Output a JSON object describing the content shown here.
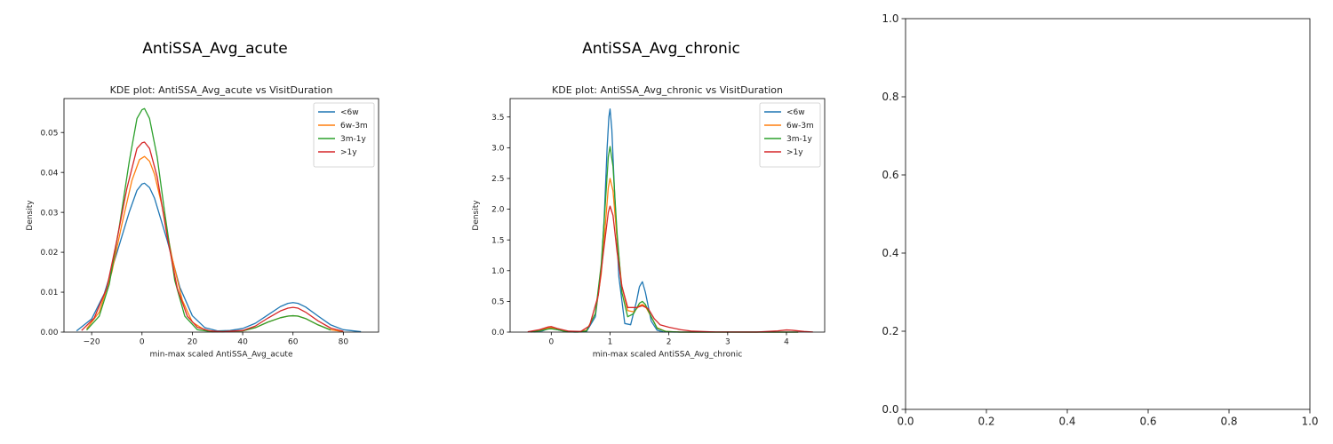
{
  "figure": {
    "subplot_titles": [
      "AntiSSA_Avg_acute",
      "AntiSSA_Avg_chronic"
    ]
  },
  "chart_data": [
    {
      "type": "line",
      "title": "KDE plot:  AntiSSA_Avg_acute vs VisitDuration",
      "xlabel": "min-max scaled AntiSSA_Avg_acute",
      "ylabel": "Density",
      "xlim": [
        -31,
        94
      ],
      "ylim": [
        0,
        0.0585
      ],
      "xticks": [
        -20,
        0,
        20,
        40,
        60,
        80
      ],
      "xtick_labels": [
        "−20",
        "0",
        "20",
        "40",
        "60",
        "80"
      ],
      "yticks": [
        0.0,
        0.01,
        0.02,
        0.03,
        0.04,
        0.05
      ],
      "ytick_labels": [
        "0.00",
        "0.01",
        "0.02",
        "0.03",
        "0.04",
        "0.05"
      ],
      "legend_position": "upper right",
      "series": [
        {
          "name": "<6w",
          "color": "#1f77b4",
          "x": [
            -26,
            -20,
            -15,
            -10,
            -5,
            -2,
            0,
            1,
            3,
            5,
            10,
            15,
            20,
            25,
            30,
            35,
            40,
            45,
            50,
            55,
            58,
            60,
            62,
            65,
            70,
            75,
            80,
            87
          ],
          "y": [
            0.0003,
            0.0033,
            0.0096,
            0.0198,
            0.0302,
            0.0355,
            0.0371,
            0.0373,
            0.0362,
            0.0335,
            0.023,
            0.0113,
            0.0041,
            0.0011,
            0.0003,
            0.0004,
            0.0009,
            0.0022,
            0.0043,
            0.0064,
            0.0072,
            0.0074,
            0.0072,
            0.0063,
            0.004,
            0.0018,
            0.0006,
            0.0001
          ]
        },
        {
          "name": "6w-3m",
          "color": "#ff7f0e",
          "x": [
            -22,
            -17,
            -12,
            -8,
            -4,
            -1,
            1,
            3,
            5,
            8,
            12,
            16,
            20,
            25,
            30,
            40,
            45,
            50,
            55,
            58,
            60,
            62,
            65,
            70,
            75,
            80
          ],
          "y": [
            0.0008,
            0.005,
            0.015,
            0.027,
            0.038,
            0.0432,
            0.044,
            0.0428,
            0.0395,
            0.0315,
            0.0185,
            0.008,
            0.0025,
            0.0005,
            0.0001,
            0.0003,
            0.0011,
            0.0025,
            0.0036,
            0.004,
            0.0041,
            0.004,
            0.0034,
            0.0018,
            0.0006,
            0.0001
          ]
        },
        {
          "name": "3m-1y",
          "color": "#2ca02c",
          "x": [
            -22,
            -17,
            -13,
            -9,
            -5,
            -2,
            0,
            1,
            3,
            6,
            9,
            13,
            17,
            22,
            28,
            40,
            45,
            50,
            55,
            58,
            60,
            62,
            65,
            70,
            75
          ],
          "y": [
            0.0005,
            0.004,
            0.012,
            0.0265,
            0.043,
            0.0535,
            0.0557,
            0.056,
            0.0535,
            0.044,
            0.03,
            0.013,
            0.004,
            0.0006,
            0.0001,
            0.0003,
            0.0011,
            0.0025,
            0.0036,
            0.004,
            0.0041,
            0.004,
            0.0034,
            0.0018,
            0.0005
          ]
        },
        {
          "name": ">1y",
          "color": "#d62728",
          "x": [
            -24,
            -19,
            -14,
            -10,
            -6,
            -2,
            0,
            1,
            3,
            6,
            10,
            14,
            18,
            22,
            27,
            32,
            40,
            45,
            50,
            55,
            58,
            60,
            62,
            65,
            70,
            75,
            80
          ],
          "y": [
            0.0004,
            0.0035,
            0.011,
            0.023,
            0.036,
            0.046,
            0.0474,
            0.0476,
            0.046,
            0.039,
            0.024,
            0.011,
            0.004,
            0.0012,
            0.0003,
            0.0001,
            0.0004,
            0.0015,
            0.0035,
            0.0053,
            0.006,
            0.0062,
            0.006,
            0.005,
            0.0028,
            0.001,
            0.0002
          ]
        }
      ]
    },
    {
      "type": "line",
      "title": "KDE plot:  AntiSSA_Avg_chronic vs VisitDuration",
      "xlabel": "min-max scaled AntiSSA_Avg_chronic",
      "ylabel": "Density",
      "xlim": [
        -0.7,
        4.65
      ],
      "ylim": [
        0,
        3.8
      ],
      "xticks": [
        0,
        1,
        2,
        3,
        4
      ],
      "xtick_labels": [
        "0",
        "1",
        "2",
        "3",
        "4"
      ],
      "yticks": [
        0.0,
        0.5,
        1.0,
        1.5,
        2.0,
        2.5,
        3.0,
        3.5
      ],
      "ytick_labels": [
        "0.0",
        "0.5",
        "1.0",
        "1.5",
        "2.0",
        "2.5",
        "3.0",
        "3.5"
      ],
      "legend_position": "upper right",
      "series": [
        {
          "name": "<6w",
          "color": "#1f77b4",
          "x": [
            -0.3,
            -0.15,
            -0.05,
            0,
            0.1,
            0.25,
            0.4,
            0.6,
            0.75,
            0.85,
            0.9,
            0.95,
            0.98,
            1.0,
            1.03,
            1.08,
            1.15,
            1.25,
            1.35,
            1.45,
            1.5,
            1.55,
            1.6,
            1.7,
            1.8,
            1.9,
            2.1,
            2.5,
            3.5,
            4.2
          ],
          "y": [
            0.002,
            0.02,
            0.055,
            0.06,
            0.04,
            0.008,
            0.0,
            0.01,
            0.25,
            1.0,
            1.85,
            3.0,
            3.5,
            3.63,
            3.3,
            2.2,
            0.9,
            0.14,
            0.12,
            0.5,
            0.74,
            0.82,
            0.65,
            0.18,
            0.03,
            0.004,
            0.0,
            0.0,
            0.0,
            0.0
          ]
        },
        {
          "name": "6w-3m",
          "color": "#ff7f0e",
          "x": [
            -0.35,
            -0.2,
            -0.05,
            0,
            0.1,
            0.25,
            0.45,
            0.6,
            0.75,
            0.85,
            0.92,
            0.97,
            1.0,
            1.05,
            1.12,
            1.2,
            1.3,
            1.4,
            1.5,
            1.55,
            1.6,
            1.7,
            1.8,
            1.95,
            2.2,
            3.0,
            4.2
          ],
          "y": [
            0.003,
            0.025,
            0.07,
            0.075,
            0.05,
            0.01,
            0.002,
            0.03,
            0.3,
            0.95,
            1.75,
            2.35,
            2.5,
            2.3,
            1.5,
            0.75,
            0.35,
            0.33,
            0.43,
            0.45,
            0.42,
            0.25,
            0.07,
            0.01,
            0.0,
            0.0,
            0.0
          ]
        },
        {
          "name": "3m-1y",
          "color": "#2ca02c",
          "x": [
            -0.35,
            -0.2,
            -0.05,
            0,
            0.1,
            0.25,
            0.45,
            0.6,
            0.75,
            0.85,
            0.92,
            0.97,
            1.0,
            1.05,
            1.12,
            1.2,
            1.3,
            1.4,
            1.5,
            1.55,
            1.6,
            1.7,
            1.8,
            1.95,
            2.2,
            3.0,
            4.2
          ],
          "y": [
            0.003,
            0.02,
            0.05,
            0.055,
            0.04,
            0.008,
            0.001,
            0.02,
            0.3,
            1.1,
            2.1,
            2.85,
            3.02,
            2.7,
            1.6,
            0.65,
            0.25,
            0.3,
            0.47,
            0.5,
            0.45,
            0.25,
            0.06,
            0.01,
            0.0,
            0.0,
            0.0
          ]
        },
        {
          "name": ">1y",
          "color": "#d62728",
          "x": [
            -0.4,
            -0.2,
            -0.05,
            0,
            0.1,
            0.3,
            0.5,
            0.65,
            0.8,
            0.9,
            0.97,
            1.0,
            1.05,
            1.12,
            1.2,
            1.3,
            1.45,
            1.55,
            1.65,
            1.75,
            1.85,
            2.0,
            2.2,
            2.4,
            2.8,
            3.5,
            3.85,
            4.0,
            4.1,
            4.3,
            4.45
          ],
          "y": [
            0.005,
            0.04,
            0.085,
            0.09,
            0.06,
            0.015,
            0.01,
            0.1,
            0.6,
            1.4,
            1.95,
            2.05,
            1.9,
            1.3,
            0.75,
            0.4,
            0.4,
            0.43,
            0.38,
            0.22,
            0.12,
            0.08,
            0.04,
            0.015,
            0.002,
            0.001,
            0.02,
            0.035,
            0.03,
            0.01,
            0.002
          ]
        }
      ]
    },
    {
      "type": "line",
      "title": "",
      "xlabel": "",
      "ylabel": "",
      "xlim": [
        0,
        1
      ],
      "ylim": [
        0,
        1
      ],
      "xticks": [
        0,
        0.2,
        0.4,
        0.6,
        0.8,
        1.0
      ],
      "xtick_labels": [
        "0.0",
        "0.2",
        "0.4",
        "0.6",
        "0.8",
        "1.0"
      ],
      "yticks": [
        0,
        0.2,
        0.4,
        0.6,
        0.8,
        1.0
      ],
      "ytick_labels": [
        "0.0",
        "0.2",
        "0.4",
        "0.6",
        "0.8",
        "1.0"
      ],
      "series": []
    }
  ]
}
